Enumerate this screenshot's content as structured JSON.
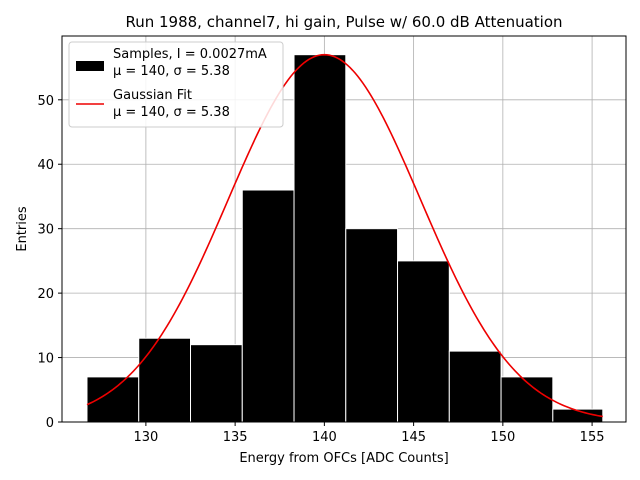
{
  "chart_data": {
    "type": "bar",
    "title": "Run 1988, channel7, hi gain, Pulse w/ 60.0 dB Attenuation",
    "xlabel": "Energy from OFCs [ADC Counts]",
    "ylabel": "Entries",
    "xlim": [
      125.3,
      156.9
    ],
    "ylim": [
      0,
      59.9
    ],
    "xticks": [
      130,
      135,
      140,
      145,
      150,
      155
    ],
    "yticks": [
      0,
      10,
      20,
      30,
      40,
      50
    ],
    "grid": true,
    "bins": [
      {
        "left": 126.7,
        "right": 129.6,
        "count": 7
      },
      {
        "left": 129.6,
        "right": 132.5,
        "count": 13
      },
      {
        "left": 132.5,
        "right": 135.4,
        "count": 12
      },
      {
        "left": 135.4,
        "right": 138.3,
        "count": 36
      },
      {
        "left": 138.3,
        "right": 141.2,
        "count": 57
      },
      {
        "left": 141.2,
        "right": 144.1,
        "count": 30
      },
      {
        "left": 144.1,
        "right": 147.0,
        "count": 25
      },
      {
        "left": 147.0,
        "right": 149.9,
        "count": 11
      },
      {
        "left": 149.9,
        "right": 152.8,
        "count": 7
      },
      {
        "left": 152.8,
        "right": 155.6,
        "count": 2
      }
    ],
    "fit": {
      "amplitude": 57,
      "mean": 140,
      "sigma": 5.38,
      "x_start": 126.7,
      "x_end": 155.6
    },
    "colors": {
      "bars": "#000000",
      "bar_edge": "#ffffff",
      "fit": "#ee0000",
      "grid": "#b0b0b0"
    },
    "legend": {
      "position": "top-left",
      "entries": [
        {
          "name": "Samples, I = 0.0027mA",
          "detail": "μ = 140, σ = 5.38",
          "kind": "bar"
        },
        {
          "name": "Gaussian Fit",
          "detail": "μ = 140, σ = 5.38",
          "kind": "line"
        }
      ]
    }
  }
}
